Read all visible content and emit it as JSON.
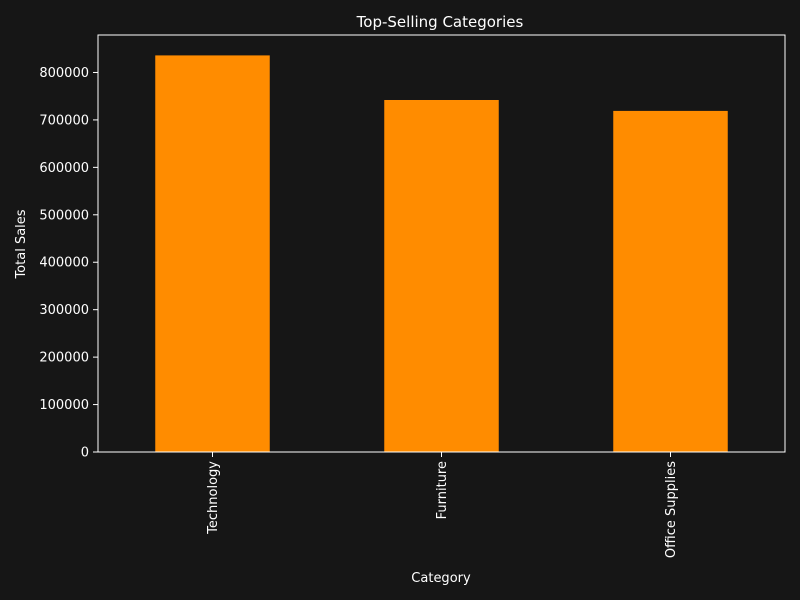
{
  "chart_data": {
    "type": "bar",
    "title": "Top-Selling Categories",
    "xlabel": "Category",
    "ylabel": "Total Sales",
    "categories": [
      "Technology",
      "Furniture",
      "Office Supplies"
    ],
    "values": [
      836000,
      742000,
      719000
    ],
    "yticks": [
      0,
      100000,
      200000,
      300000,
      400000,
      500000,
      600000,
      700000,
      800000
    ],
    "ylim": [
      0,
      879000
    ],
    "grid": false,
    "colors": {
      "background": "#161616",
      "bar": "#ff8c00",
      "axis": "#ffffff",
      "text": "#ffffff"
    }
  }
}
